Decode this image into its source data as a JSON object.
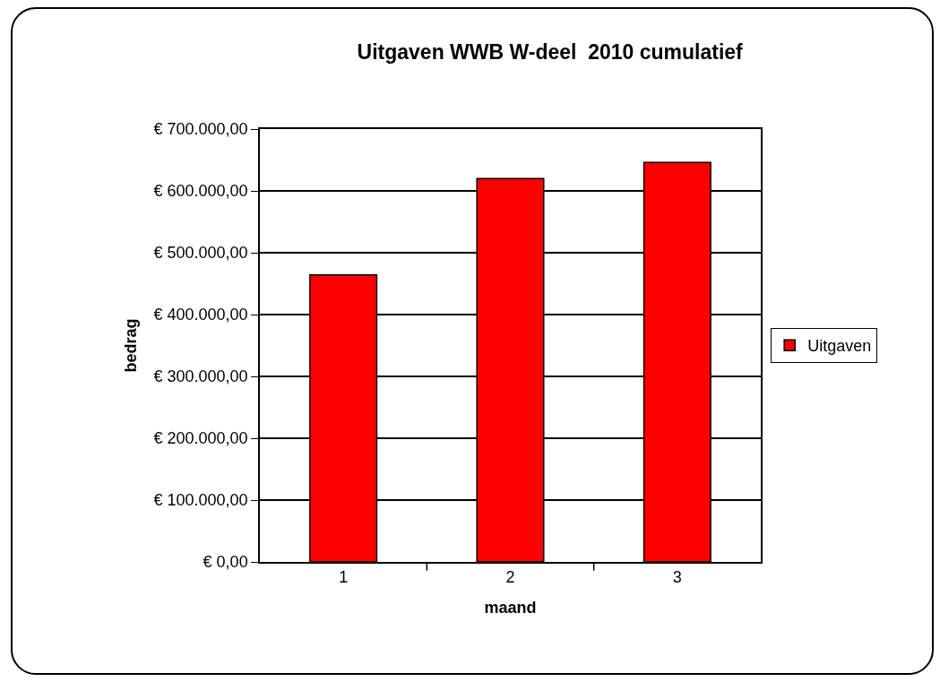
{
  "chart_data": {
    "type": "bar",
    "title": "Uitgaven WWB W-deel  2010 cumulatief",
    "xlabel": "maand",
    "ylabel": "bedrag",
    "categories": [
      "1",
      "2",
      "3"
    ],
    "series": [
      {
        "name": "Uitgaven",
        "color": "#ff0000",
        "values": [
          464000,
          620000,
          646000
        ]
      }
    ],
    "ylim": [
      0,
      700000
    ],
    "yticks": [
      {
        "value": 0,
        "label": "€ 0,00"
      },
      {
        "value": 100000,
        "label": "€ 100.000,00"
      },
      {
        "value": 200000,
        "label": "€ 200.000,00"
      },
      {
        "value": 300000,
        "label": "€ 300.000,00"
      },
      {
        "value": 400000,
        "label": "€ 400.000,00"
      },
      {
        "value": 500000,
        "label": "€ 500.000,00"
      },
      {
        "value": 600000,
        "label": "€ 600.000,00"
      },
      {
        "value": 700000,
        "label": "€ 700.000,00"
      }
    ],
    "grid": "y",
    "legend": "right"
  }
}
